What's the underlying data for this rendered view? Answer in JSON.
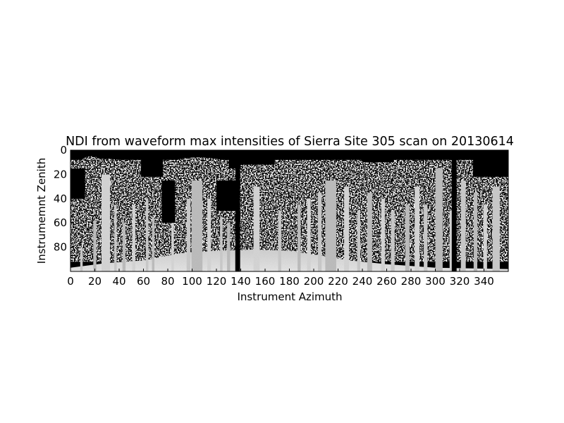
{
  "chart_data": {
    "type": "heatmap",
    "title": "NDI from waveform max intensities of Sierra Site 305 scan on 20130614",
    "xlabel": "Instrument Azimuth",
    "ylabel": "Instrumemnt Zenith",
    "xlim": [
      0,
      360
    ],
    "ylim": [
      100,
      0
    ],
    "xticks": [
      0,
      20,
      40,
      60,
      80,
      100,
      120,
      140,
      160,
      180,
      200,
      220,
      240,
      260,
      280,
      300,
      320,
      340
    ],
    "yticks": [
      0,
      20,
      40,
      60,
      80
    ],
    "colormap": "gray",
    "grid": false,
    "image_description_features": {
      "trunks": [
        {
          "azimuth": 9,
          "width": 2,
          "top": 80
        },
        {
          "azimuth": 20,
          "width": 2.5,
          "top": 58
        },
        {
          "azimuth": 29,
          "width": 7,
          "top": 20
        },
        {
          "azimuth": 37,
          "width": 2,
          "top": 45
        },
        {
          "azimuth": 44,
          "width": 2.5,
          "top": 60
        },
        {
          "azimuth": 52,
          "width": 2.5,
          "top": 45
        },
        {
          "azimuth": 63,
          "width": 2,
          "top": 40
        },
        {
          "azimuth": 68,
          "width": 2,
          "top": 55
        },
        {
          "azimuth": 84,
          "width": 2,
          "top": 60
        },
        {
          "azimuth": 97,
          "width": 3,
          "top": 40
        },
        {
          "azimuth": 104,
          "width": 9,
          "top": 25
        },
        {
          "azimuth": 114,
          "width": 3,
          "top": 40
        },
        {
          "azimuth": 124,
          "width": 2,
          "top": 55
        },
        {
          "azimuth": 130,
          "width": 2.5,
          "top": 60
        },
        {
          "azimuth": 153,
          "width": 5,
          "top": 30
        },
        {
          "azimuth": 172,
          "width": 2.5,
          "top": 50
        },
        {
          "azimuth": 188,
          "width": 2.5,
          "top": 45
        },
        {
          "azimuth": 196,
          "width": 3,
          "top": 40
        },
        {
          "azimuth": 205,
          "width": 3,
          "top": 35
        },
        {
          "azimuth": 214,
          "width": 9,
          "top": 25
        },
        {
          "azimuth": 227,
          "width": 4,
          "top": 30
        },
        {
          "azimuth": 237,
          "width": 2.5,
          "top": 50
        },
        {
          "azimuth": 246,
          "width": 4,
          "top": 35
        },
        {
          "azimuth": 257,
          "width": 3,
          "top": 40
        },
        {
          "azimuth": 265,
          "width": 3,
          "top": 50
        },
        {
          "azimuth": 277,
          "width": 3.5,
          "top": 45
        },
        {
          "azimuth": 285,
          "width": 4,
          "top": 30
        },
        {
          "azimuth": 292,
          "width": 3,
          "top": 45
        },
        {
          "azimuth": 303,
          "width": 6,
          "top": 15
        },
        {
          "azimuth": 313,
          "width": 2.5,
          "top": 50
        },
        {
          "azimuth": 323,
          "width": 4,
          "top": 25
        },
        {
          "azimuth": 333,
          "width": 3,
          "top": 35
        },
        {
          "azimuth": 341,
          "width": 3,
          "top": 45
        },
        {
          "azimuth": 350,
          "width": 6,
          "top": 30
        }
      ],
      "crowns": [
        {
          "azimuth": 28,
          "zenith": 14,
          "rx": 22,
          "ry": 7
        },
        {
          "azimuth": 35,
          "zenith": 28,
          "rx": 13,
          "ry": 8
        },
        {
          "azimuth": 17,
          "zenith": 10,
          "rx": 8,
          "ry": 5
        },
        {
          "azimuth": 48,
          "zenith": 45,
          "rx": 6,
          "ry": 6
        },
        {
          "azimuth": 65,
          "zenith": 55,
          "rx": 5,
          "ry": 8
        },
        {
          "azimuth": 105,
          "zenith": 14,
          "rx": 28,
          "ry": 8
        },
        {
          "azimuth": 100,
          "zenith": 25,
          "rx": 15,
          "ry": 8
        },
        {
          "azimuth": 118,
          "zenith": 25,
          "rx": 9,
          "ry": 6
        },
        {
          "azimuth": 156,
          "zenith": 30,
          "rx": 15,
          "ry": 8
        },
        {
          "azimuth": 155,
          "zenith": 52,
          "rx": 14,
          "ry": 15
        },
        {
          "azimuth": 183,
          "zenith": 50,
          "rx": 11,
          "ry": 22
        },
        {
          "azimuth": 214,
          "zenith": 20,
          "rx": 28,
          "ry": 10
        },
        {
          "azimuth": 205,
          "zenith": 40,
          "rx": 16,
          "ry": 16
        },
        {
          "azimuth": 226,
          "zenith": 40,
          "rx": 12,
          "ry": 18
        },
        {
          "azimuth": 250,
          "zenith": 40,
          "rx": 14,
          "ry": 20
        },
        {
          "azimuth": 262,
          "zenith": 58,
          "rx": 14,
          "ry": 16
        },
        {
          "azimuth": 292,
          "zenith": 17,
          "rx": 22,
          "ry": 8
        },
        {
          "azimuth": 285,
          "zenith": 35,
          "rx": 10,
          "ry": 12
        },
        {
          "azimuth": 300,
          "zenith": 60,
          "rx": 8,
          "ry": 16
        },
        {
          "azimuth": 331,
          "zenith": 40,
          "rx": 6,
          "ry": 18
        },
        {
          "azimuth": 345,
          "zenith": 40,
          "rx": 6,
          "ry": 14
        }
      ],
      "sky_gaps": [
        {
          "x0": 58,
          "x1": 76,
          "z0": 0,
          "z1": 22
        },
        {
          "x0": 130,
          "x1": 140,
          "z0": 0,
          "z1": 15
        },
        {
          "x0": 140,
          "x1": 168,
          "z0": 0,
          "z1": 12
        },
        {
          "x0": 240,
          "x1": 266,
          "z0": 0,
          "z1": 10
        },
        {
          "x0": 331,
          "x1": 360,
          "z0": 0,
          "z1": 22
        },
        {
          "x0": 0,
          "x1": 12,
          "z0": 15,
          "z1": 40
        },
        {
          "x0": 75,
          "x1": 86,
          "z0": 25,
          "z1": 60
        },
        {
          "x0": 120,
          "x1": 136,
          "z0": 25,
          "z1": 50
        }
      ],
      "dark_bands": [
        {
          "x0": 135.5,
          "x1": 139.5
        },
        {
          "x0": 313.5,
          "x1": 317.5
        }
      ]
    }
  }
}
